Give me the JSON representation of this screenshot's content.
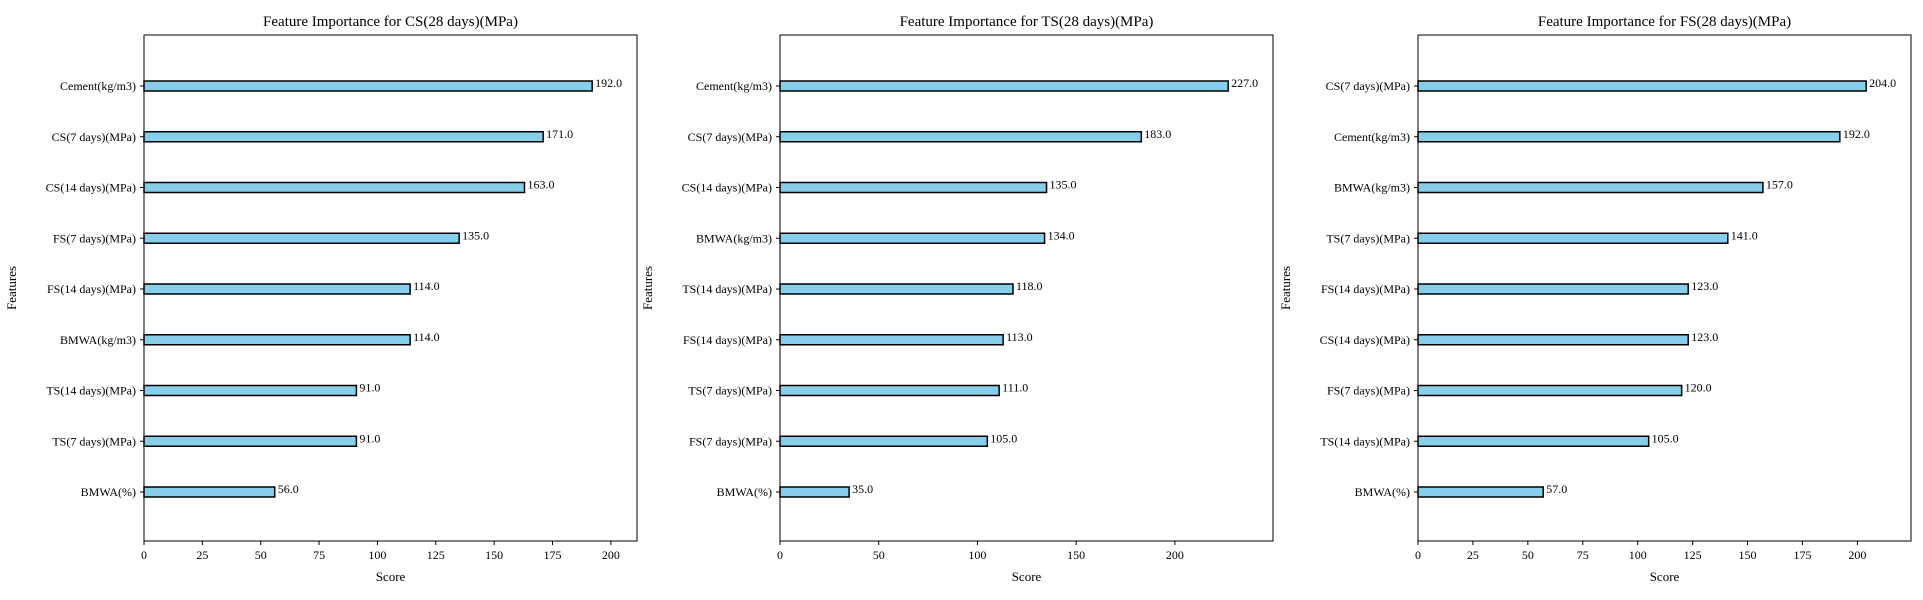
{
  "colors": {
    "bar_fill": "#87ceeb",
    "bar_edge": "#000000",
    "axis": "#000000",
    "background": "#ffffff"
  },
  "chart_data": [
    {
      "type": "bar",
      "orientation": "horizontal",
      "title": "Feature Importance for CS(28 days)(MPa)",
      "xlabel": "Score",
      "ylabel": "Features",
      "categories": [
        "Cement(kg/m3)",
        "CS(7 days)(MPa)",
        "CS(14 days)(MPa)",
        "FS(7 days)(MPa)",
        "FS(14 days)(MPa)",
        "BMWA(kg/m3)",
        "TS(14 days)(MPa)",
        "TS(7 days)(MPa)",
        "BMWA(%)"
      ],
      "values": [
        192,
        171,
        163,
        135,
        114,
        114,
        91,
        91,
        56
      ],
      "value_labels": [
        "192.0",
        "171.0",
        "163.0",
        "135.0",
        "114.0",
        "114.0",
        "91.0",
        "91.0",
        "56.0"
      ],
      "xticks": [
        0,
        25,
        50,
        75,
        100,
        125,
        150,
        175,
        200
      ],
      "xlim": [
        0,
        211.2
      ],
      "grid": false
    },
    {
      "type": "bar",
      "orientation": "horizontal",
      "title": "Feature Importance for TS(28 days)(MPa)",
      "xlabel": "Score",
      "ylabel": "Features",
      "categories": [
        "Cement(kg/m3)",
        "CS(7 days)(MPa)",
        "CS(14 days)(MPa)",
        "BMWA(kg/m3)",
        "TS(14 days)(MPa)",
        "FS(14 days)(MPa)",
        "TS(7 days)(MPa)",
        "FS(7 days)(MPa)",
        "BMWA(%)"
      ],
      "values": [
        227,
        183,
        135,
        134,
        118,
        113,
        111,
        105,
        35
      ],
      "value_labels": [
        "227.0",
        "183.0",
        "135.0",
        "134.0",
        "118.0",
        "113.0",
        "111.0",
        "105.0",
        "35.0"
      ],
      "xticks": [
        0,
        50,
        100,
        150,
        200
      ],
      "xlim": [
        0,
        249.7
      ],
      "grid": false
    },
    {
      "type": "bar",
      "orientation": "horizontal",
      "title": "Feature Importance for FS(28 days)(MPa)",
      "xlabel": "Score",
      "ylabel": "Features",
      "categories": [
        "CS(7 days)(MPa)",
        "Cement(kg/m3)",
        "BMWA(kg/m3)",
        "TS(7 days)(MPa)",
        "FS(14 days)(MPa)",
        "CS(14 days)(MPa)",
        "FS(7 days)(MPa)",
        "TS(14 days)(MPa)",
        "BMWA(%)"
      ],
      "values": [
        204,
        192,
        157,
        141,
        123,
        123,
        120,
        105,
        57
      ],
      "value_labels": [
        "204.0",
        "192.0",
        "157.0",
        "141.0",
        "123.0",
        "123.0",
        "120.0",
        "105.0",
        "57.0"
      ],
      "xticks": [
        0,
        25,
        50,
        75,
        100,
        125,
        150,
        175,
        200
      ],
      "xlim": [
        0,
        224.4
      ],
      "grid": false
    }
  ]
}
